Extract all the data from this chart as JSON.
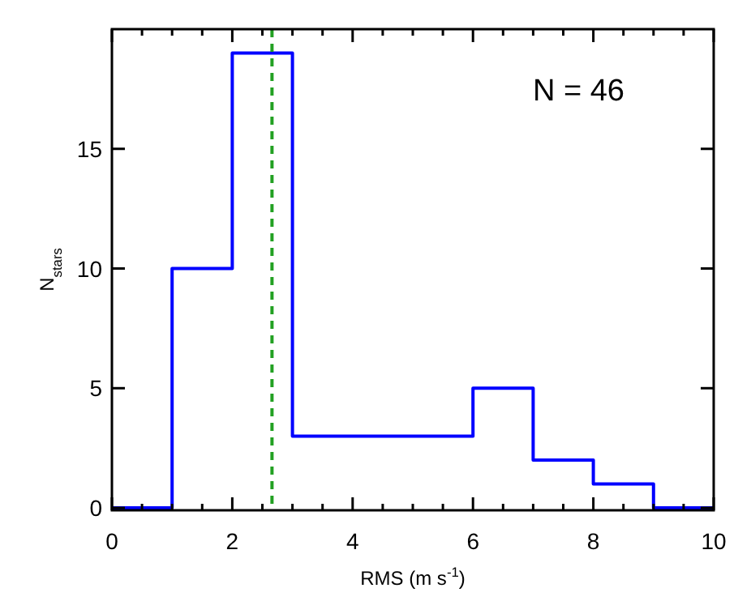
{
  "chart_data": {
    "type": "histogram",
    "xlabel": "RMS (m s$^{-1}$)",
    "ylabel": "N$_{stars}$",
    "bins": [
      0,
      1,
      2,
      3,
      4,
      5,
      6,
      7,
      8,
      9,
      10
    ],
    "values": [
      0,
      10,
      19,
      3,
      3,
      3,
      5,
      2,
      1,
      0
    ],
    "color": "#0000ff",
    "xlim": [
      0,
      10
    ],
    "ylim": [
      -0.1,
      20
    ],
    "xticks": [
      0,
      2,
      4,
      6,
      8,
      10
    ],
    "yticks": [
      0,
      5,
      10,
      15
    ],
    "ref_lines": [
      {
        "axis": "x",
        "value": 2.66,
        "color": "#22a022",
        "line_style": "dashed"
      }
    ],
    "annotations": [
      "N = 46"
    ]
  }
}
